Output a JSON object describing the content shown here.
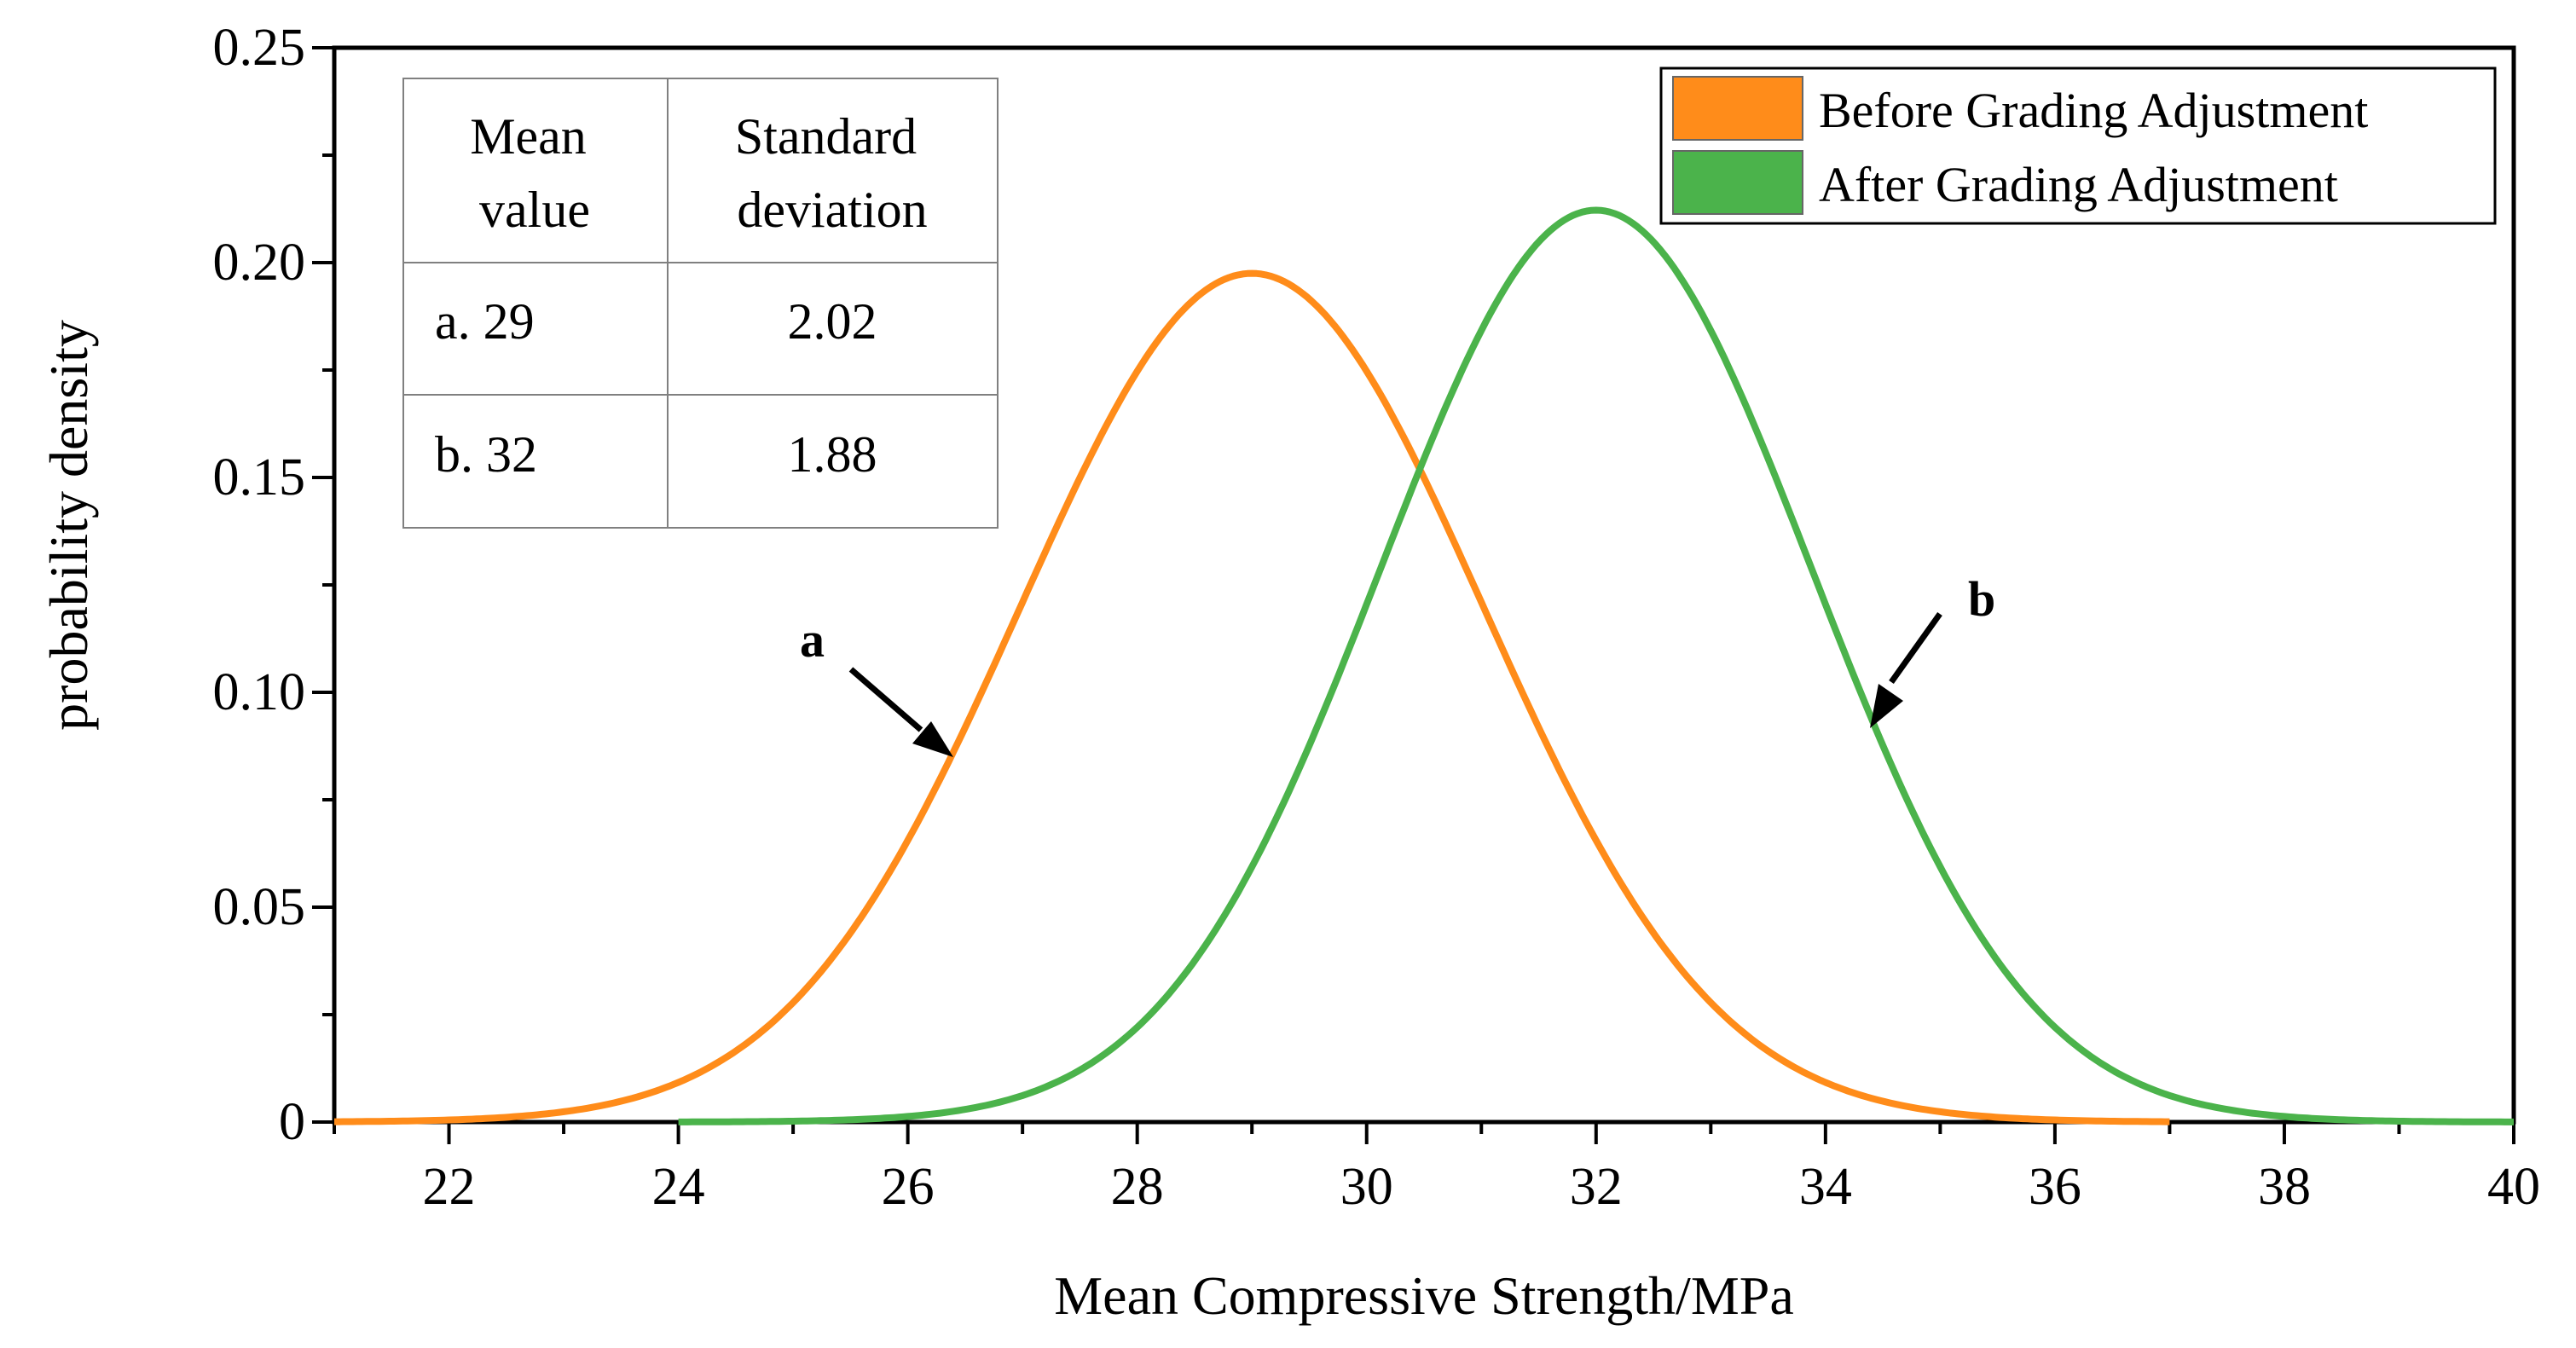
{
  "chart_data": {
    "type": "line",
    "title": "",
    "xlabel": "Mean Compressive Strength/MPa",
    "ylabel": "probability density",
    "xlim": [
      21,
      40
    ],
    "ylim": [
      0,
      0.25
    ],
    "x_ticks": [
      22,
      24,
      26,
      28,
      30,
      32,
      34,
      36,
      38,
      40
    ],
    "x_tick_labels": [
      "22",
      "24",
      "26",
      "28",
      "30",
      "32",
      "34",
      "36",
      "38",
      "40"
    ],
    "y_ticks": [
      0,
      0.05,
      0.1,
      0.15,
      0.2,
      0.25
    ],
    "y_tick_labels": [
      "0",
      "0.05",
      "0.10",
      "0.15",
      "0.20",
      "0.25"
    ],
    "grid": false,
    "legend_position": "top-right",
    "series": [
      {
        "name": "Before Grading Adjustment",
        "label": "a",
        "distribution": "normal",
        "mean": 29,
        "std": 2.02,
        "x_range": [
          21,
          37
        ],
        "color": "#FF8C1A",
        "x": [
          21,
          22,
          23,
          24,
          25,
          26,
          27,
          28,
          29,
          30,
          31,
          32,
          33,
          34,
          35,
          36,
          37
        ],
        "values": [
          0.0004,
          0.0018,
          0.0065,
          0.019,
          0.0446,
          0.084,
          0.127,
          0.1737,
          0.1975,
          0.1737,
          0.127,
          0.084,
          0.0446,
          0.019,
          0.0065,
          0.0018,
          0.0004
        ]
      },
      {
        "name": "After Grading Adjustment",
        "label": "b",
        "distribution": "normal",
        "mean": 32,
        "std": 1.88,
        "x_range": [
          24,
          40
        ],
        "color": "#4BB34B",
        "x": [
          24,
          25,
          26,
          27,
          28,
          29,
          30,
          31,
          32,
          33,
          34,
          35,
          36,
          37,
          38,
          39,
          40
        ],
        "values": [
          0.0002,
          0.0009,
          0.0017,
          0.0062,
          0.0221,
          0.059,
          0.1196,
          0.1836,
          0.2122,
          0.1836,
          0.1196,
          0.059,
          0.0221,
          0.0062,
          0.0017,
          0.0004,
          0.0
        ]
      }
    ],
    "annotations": [
      {
        "text": "a",
        "series": "Before Grading Adjustment",
        "arrow_to_x": 26.4
      },
      {
        "text": "b",
        "series": "After Grading Adjustment",
        "arrow_to_x": 34.4
      }
    ],
    "inset_table": {
      "headers": [
        "Mean value",
        "Standard deviation"
      ],
      "header_lines": [
        [
          "Mean",
          "value"
        ],
        [
          "Standard",
          "deviation"
        ]
      ],
      "rows": [
        [
          "a. 29",
          "2.02"
        ],
        [
          "b. 32",
          "1.88"
        ]
      ]
    }
  }
}
